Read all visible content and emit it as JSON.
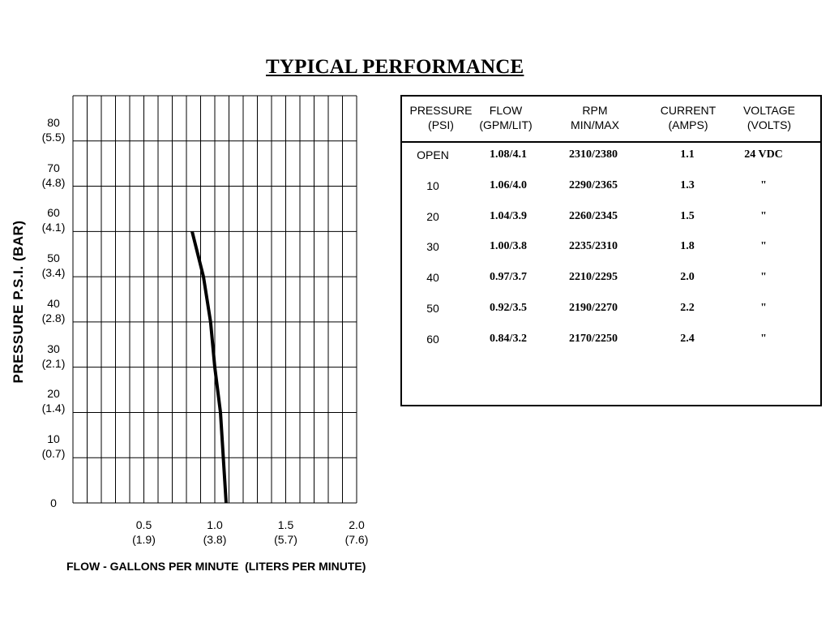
{
  "title": "TYPICAL PERFORMANCE",
  "chart_data": {
    "type": "line",
    "title": "",
    "xlabel": "FLOW - GALLONS PER MINUTE  (LITERS PER MINUTE)",
    "ylabel": "PRESSURE   P.S.I.   (BAR)",
    "xlim": [
      0,
      2.0
    ],
    "ylim": [
      0,
      90
    ],
    "grid": true,
    "x_ticks": [
      {
        "value": 0.5,
        "line1": "0.5",
        "line2": "(1.9)"
      },
      {
        "value": 1.0,
        "line1": "1.0",
        "line2": "(3.8)"
      },
      {
        "value": 1.5,
        "line1": "1.5",
        "line2": "(5.7)"
      },
      {
        "value": 2.0,
        "line1": "2.0",
        "line2": "(7.6)"
      }
    ],
    "y_ticks": [
      {
        "value": 0,
        "line1": "0",
        "line2": ""
      },
      {
        "value": 10,
        "line1": "10",
        "line2": "(0.7)"
      },
      {
        "value": 20,
        "line1": "20",
        "line2": "(1.4)"
      },
      {
        "value": 30,
        "line1": "30",
        "line2": "(2.1)"
      },
      {
        "value": 40,
        "line1": "40",
        "line2": "(2.8)"
      },
      {
        "value": 50,
        "line1": "50",
        "line2": "(3.4)"
      },
      {
        "value": 60,
        "line1": "60",
        "line2": "(4.1)"
      },
      {
        "value": 70,
        "line1": "70",
        "line2": "(4.8)"
      },
      {
        "value": 80,
        "line1": "80",
        "line2": "(5.5)"
      }
    ],
    "series": [
      {
        "points": [
          {
            "x": 1.08,
            "y": 0
          },
          {
            "x": 1.06,
            "y": 10
          },
          {
            "x": 1.04,
            "y": 20
          },
          {
            "x": 1.0,
            "y": 30
          },
          {
            "x": 0.97,
            "y": 40
          },
          {
            "x": 0.92,
            "y": 50
          },
          {
            "x": 0.84,
            "y": 60
          }
        ]
      }
    ]
  },
  "table": {
    "headers": [
      {
        "line1": "PRESSURE",
        "line2": "(PSI)"
      },
      {
        "line1": "FLOW",
        "line2": "(GPM/LIT)"
      },
      {
        "line1": "RPM",
        "line2": "MIN/MAX"
      },
      {
        "line1": "CURRENT",
        "line2": "(AMPS)"
      },
      {
        "line1": "VOLTAGE",
        "line2": "(VOLTS)"
      }
    ],
    "rows": [
      {
        "pressure": "OPEN",
        "flow": "1.08/4.1",
        "rpm": "2310/2380",
        "current": "1.1",
        "voltage": "24 VDC"
      },
      {
        "pressure": "10",
        "flow": "1.06/4.0",
        "rpm": "2290/2365",
        "current": "1.3",
        "voltage": "\""
      },
      {
        "pressure": "20",
        "flow": "1.04/3.9",
        "rpm": "2260/2345",
        "current": "1.5",
        "voltage": "\""
      },
      {
        "pressure": "30",
        "flow": "1.00/3.8",
        "rpm": "2235/2310",
        "current": "1.8",
        "voltage": "\""
      },
      {
        "pressure": "40",
        "flow": "0.97/3.7",
        "rpm": "2210/2295",
        "current": "2.0",
        "voltage": "\""
      },
      {
        "pressure": "50",
        "flow": "0.92/3.5",
        "rpm": "2190/2270",
        "current": "2.2",
        "voltage": "\""
      },
      {
        "pressure": "60",
        "flow": "0.84/3.2",
        "rpm": "2170/2250",
        "current": "2.4",
        "voltage": "\""
      }
    ]
  }
}
